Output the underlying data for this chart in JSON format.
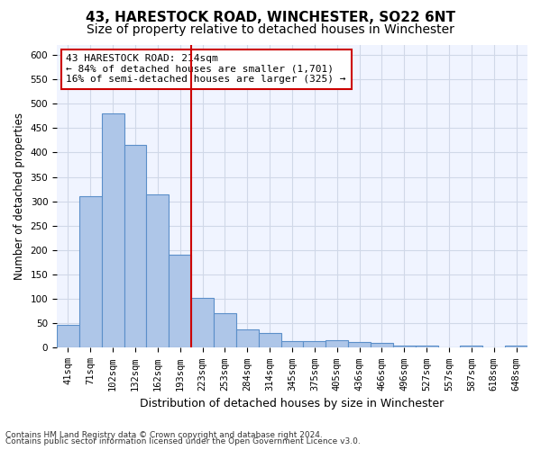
{
  "title": "43, HARESTOCK ROAD, WINCHESTER, SO22 6NT",
  "subtitle": "Size of property relative to detached houses in Winchester",
  "xlabel": "Distribution of detached houses by size in Winchester",
  "ylabel": "Number of detached properties",
  "categories": [
    "41sqm",
    "71sqm",
    "102sqm",
    "132sqm",
    "162sqm",
    "193sqm",
    "223sqm",
    "253sqm",
    "284sqm",
    "314sqm",
    "345sqm",
    "375sqm",
    "405sqm",
    "436sqm",
    "466sqm",
    "496sqm",
    "527sqm",
    "557sqm",
    "587sqm",
    "618sqm",
    "648sqm"
  ],
  "values": [
    46,
    311,
    480,
    415,
    315,
    190,
    103,
    70,
    38,
    30,
    14,
    13,
    15,
    11,
    10,
    5,
    5,
    0,
    4,
    0,
    4
  ],
  "bar_color": "#aec6e8",
  "bar_edge_color": "#5b8fc9",
  "bar_edge_width": 0.8,
  "vline_x": 5,
  "vline_color": "#cc0000",
  "vline_label": "43 HARESTOCK ROAD: 214sqm",
  "annotation_line1": "43 HARESTOCK ROAD: 214sqm",
  "annotation_line2": "← 84% of detached houses are smaller (1,701)",
  "annotation_line3": "16% of semi-detached houses are larger (325) →",
  "annotation_box_color": "#ffffff",
  "annotation_box_edge": "#cc0000",
  "ylim": [
    0,
    620
  ],
  "yticks": [
    0,
    50,
    100,
    150,
    200,
    250,
    300,
    350,
    400,
    450,
    500,
    550,
    600
  ],
  "footnote1": "Contains HM Land Registry data © Crown copyright and database right 2024.",
  "footnote2": "Contains public sector information licensed under the Open Government Licence v3.0.",
  "bg_color": "#f0f4ff",
  "grid_color": "#d0d8e8",
  "title_fontsize": 11,
  "subtitle_fontsize": 10,
  "xlabel_fontsize": 9,
  "ylabel_fontsize": 8.5,
  "tick_fontsize": 7.5,
  "footnote_fontsize": 6.5,
  "annotation_fontsize": 8
}
